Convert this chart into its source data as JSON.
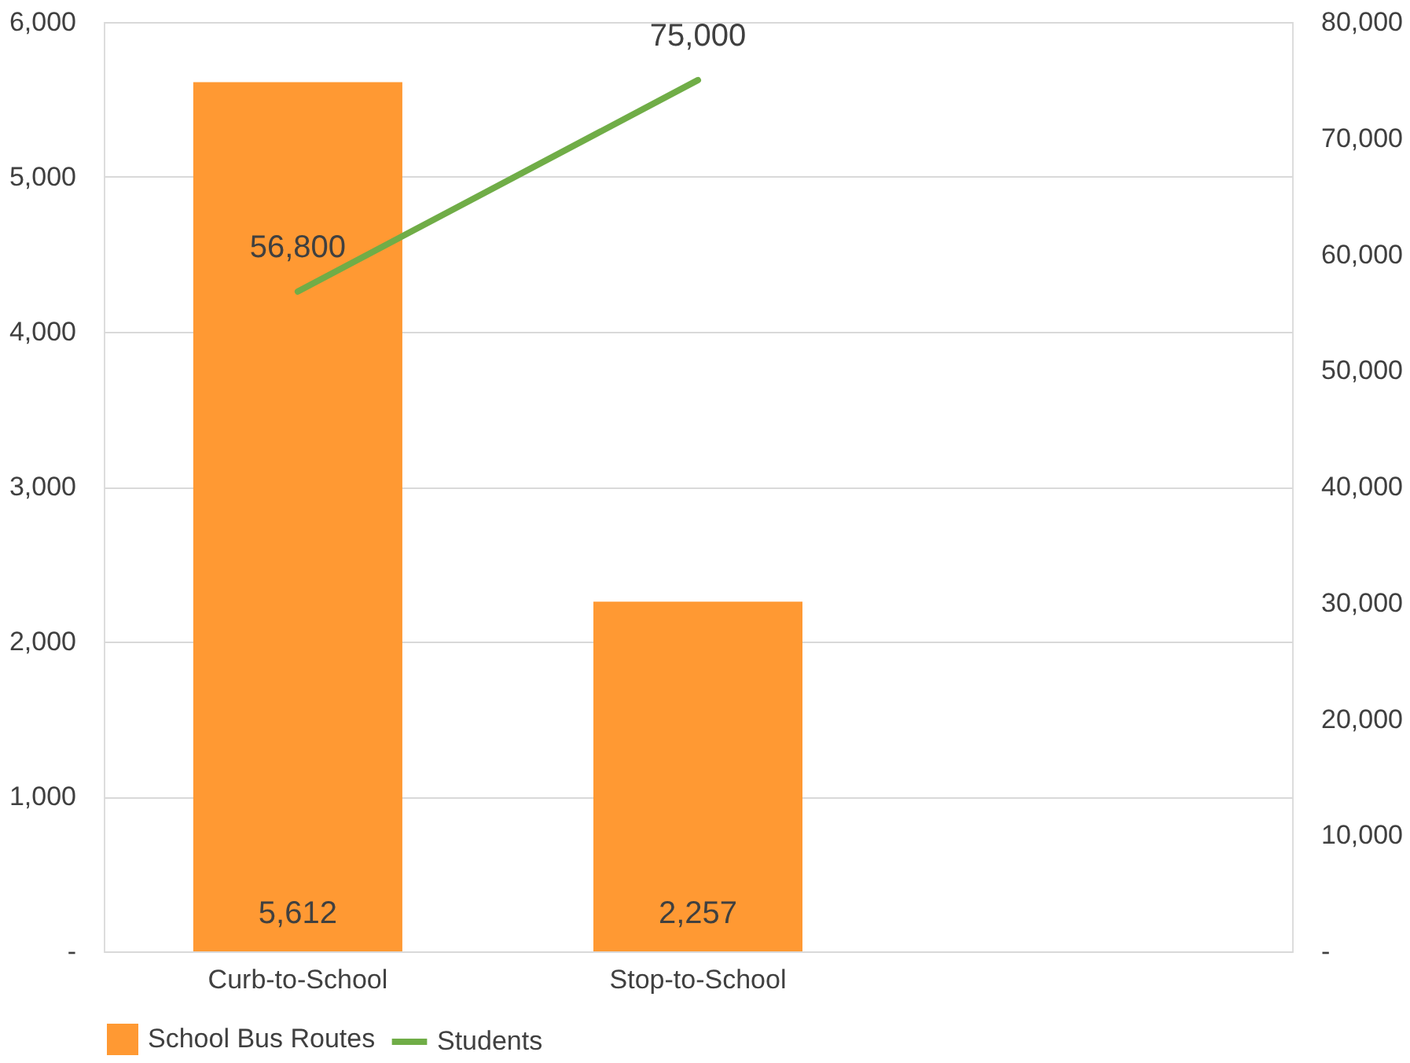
{
  "chart_data": {
    "type": "bar",
    "categories": [
      "Curb-to-School",
      "Stop-to-School",
      null
    ],
    "series": [
      {
        "name": "School Bus Routes",
        "color": "#ff9933",
        "values": [
          5612,
          2257,
          null
        ],
        "value_labels": [
          "5,612",
          "2,257",
          null
        ]
      },
      {
        "name": "Students",
        "type": "line",
        "axis": "y2",
        "color": "#70ad47",
        "values": [
          56800,
          75000,
          null
        ],
        "value_labels": [
          "56,800",
          "75,000",
          null
        ]
      }
    ],
    "ylim": [
      0,
      6000
    ],
    "yticks": [
      {
        "value": 0,
        "label": "-"
      },
      {
        "value": 1000,
        "label": "1,000"
      },
      {
        "value": 2000,
        "label": "2,000"
      },
      {
        "value": 3000,
        "label": "3,000"
      },
      {
        "value": 4000,
        "label": "4,000"
      },
      {
        "value": 5000,
        "label": "5,000"
      },
      {
        "value": 6000,
        "label": "6,000"
      }
    ],
    "y2lim": [
      0,
      80000
    ],
    "y2ticks": [
      {
        "value": 0,
        "label": "-"
      },
      {
        "value": 10000,
        "label": "10,000"
      },
      {
        "value": 20000,
        "label": "20,000"
      },
      {
        "value": 30000,
        "label": "30,000"
      },
      {
        "value": 40000,
        "label": "40,000"
      },
      {
        "value": 50000,
        "label": "50,000"
      },
      {
        "value": 60000,
        "label": "60,000"
      },
      {
        "value": 70000,
        "label": "70,000"
      },
      {
        "value": 80000,
        "label": "80,000"
      }
    ],
    "grid": "y",
    "legend": "bottom",
    "marker": "none"
  }
}
